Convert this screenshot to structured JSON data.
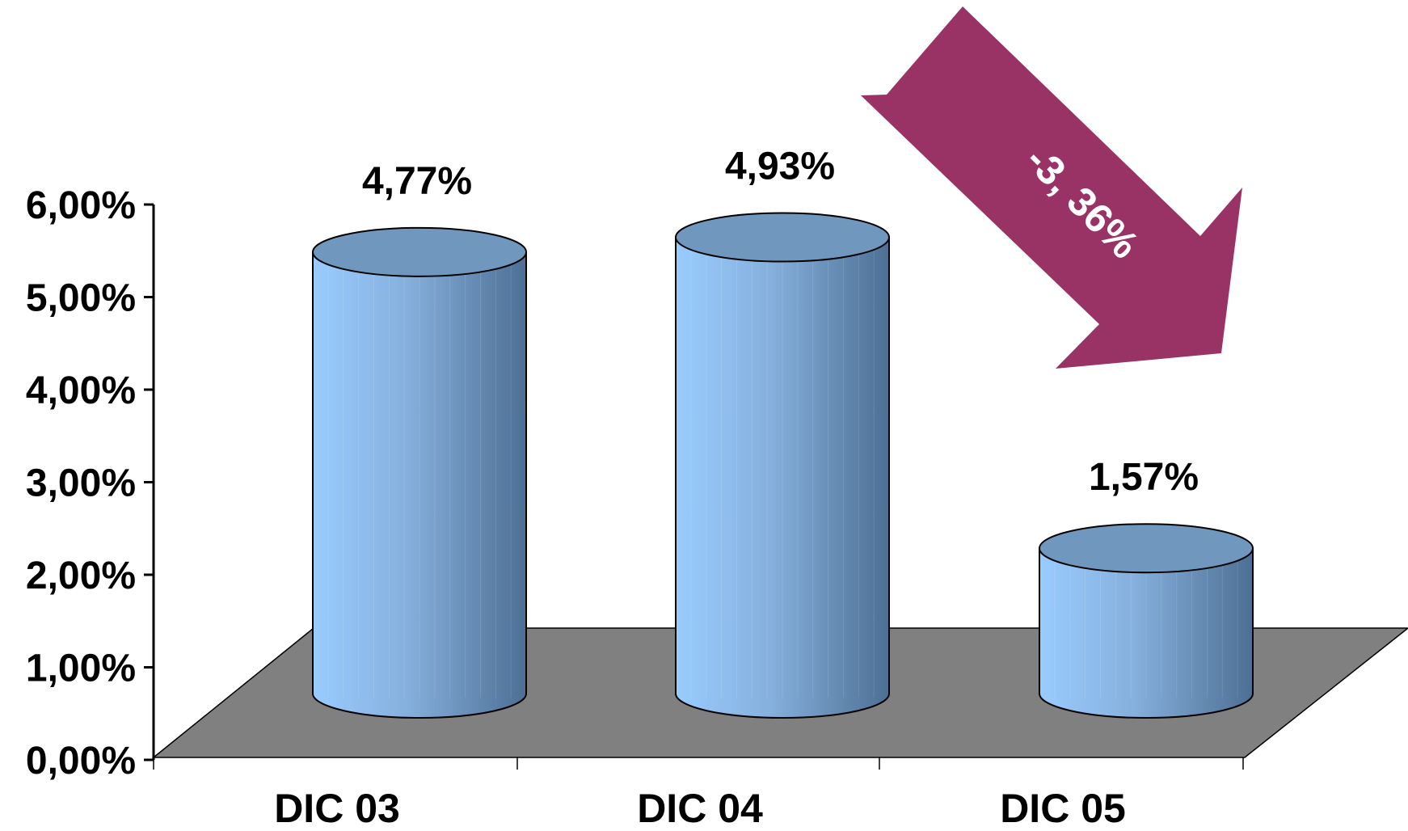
{
  "chart_data": {
    "type": "bar",
    "categories": [
      "DIC 03",
      "DIC 04",
      "DIC 05"
    ],
    "values": [
      4.77,
      4.93,
      1.57
    ],
    "value_labels": [
      "4,77%",
      "4,93%",
      "1,57%"
    ],
    "yticks": [
      "0,00%",
      "1,00%",
      "2,00%",
      "3,00%",
      "4,00%",
      "5,00%",
      "6,00%"
    ],
    "ylim": [
      0,
      6
    ],
    "title": "",
    "xlabel": "",
    "ylabel": "",
    "grid": false,
    "bar_shape": "cylinder",
    "annotation": {
      "text": "-3, 36%",
      "shape": "down-right-arrow",
      "color": "#993366"
    },
    "colors": {
      "bar_light": "#99ccff",
      "bar_dark": "#4d6f94",
      "bar_top": "#7098bf",
      "floor": "#808080"
    }
  }
}
